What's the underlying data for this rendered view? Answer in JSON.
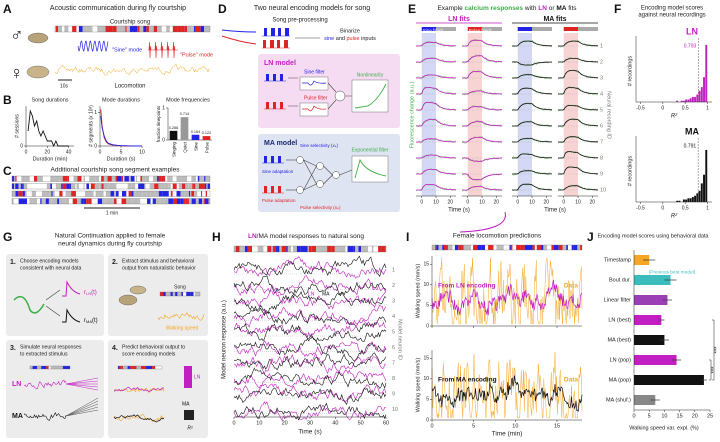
{
  "a": {
    "letter": "A",
    "title": "Acoustic communication during fly courtship",
    "male": "♂",
    "female": "♀",
    "song_label": "Courtship song",
    "sine_mode": "\"Sine\" mode",
    "pulse_mode": "\"Pulse\" mode",
    "scale": "10s",
    "locomotion": "Locomotion"
  },
  "b": {
    "letter": "B",
    "song_durations": {
      "type": "line",
      "title": "Song durations",
      "xlabel": "Duration (min)",
      "ylabel": "# sessions",
      "xlim": [
        0,
        45
      ],
      "xticks": [
        0,
        20,
        40
      ],
      "ylim": [
        0,
        8
      ],
      "yticks": [
        0
      ],
      "color": "#111111",
      "x": [
        2,
        4,
        6,
        8,
        10,
        12,
        14,
        16,
        18,
        20,
        22,
        24,
        26,
        28,
        30,
        35,
        40
      ],
      "values": [
        3,
        7,
        6,
        4,
        5,
        3,
        2,
        3,
        2,
        1,
        1,
        1,
        0,
        1,
        0,
        0,
        0
      ]
    },
    "mode_durations": {
      "type": "line",
      "title": "Mode durations",
      "xlabel": "Duration (s)",
      "ylabel": "# segments (x 10³)",
      "xlim": [
        0,
        10
      ],
      "xticks": [
        0,
        5,
        10
      ],
      "ylim": [
        0,
        1.2
      ],
      "yticks": [
        0,
        1
      ],
      "x": [
        0.2,
        0.5,
        1,
        1.5,
        2,
        3,
        4,
        5,
        6,
        8,
        10
      ],
      "series": [
        {
          "color": "#e02424",
          "values": [
            1.1,
            0.6,
            0.25,
            0.12,
            0.06,
            0.03,
            0.02,
            0.01,
            0,
            0,
            0
          ]
        },
        {
          "color": "#2323e6",
          "values": [
            0.9,
            0.55,
            0.3,
            0.15,
            0.08,
            0.04,
            0.02,
            0.01,
            0.01,
            0,
            0
          ]
        }
      ]
    },
    "mode_frequencies": {
      "type": "bar",
      "title": "Mode frequencies",
      "ylabel": "fraction timepoints",
      "ylim": [
        0,
        1
      ],
      "yticks": [
        0,
        1
      ],
      "categories": [
        "Singing",
        "Quiet",
        "Sine",
        "Pulse"
      ],
      "values": [
        0.286,
        0.714,
        0.164,
        0.122
      ],
      "colors": [
        "#111111",
        "#999999",
        "#2323e6",
        "#e02424"
      ]
    }
  },
  "c": {
    "letter": "C",
    "title": "Additional courtship song segment examples",
    "scale": "1 min"
  },
  "d": {
    "letter": "D",
    "title": "Two neural encoding models for song",
    "preprocessing": "Song pre-processing",
    "binarize": "Binarize",
    "binarize_parts": [
      "sine",
      " and ",
      "pulse",
      " inputs"
    ],
    "ln_model": "LN model",
    "sine_filter": "Sine filter",
    "pulse_filter": "Pulse filter",
    "nonlinearity": "Nonlinearity",
    "ma_model": "MA model",
    "sine_selectivity": "Sine selectivity (xₛ)",
    "sine_adaptation": "Sine adaptation",
    "pulse_adaptation": "Pulse adaptation",
    "pulse_selectivity": "Pulse selectivity (xₚ)",
    "exponential_filter": "Exponential filter"
  },
  "e": {
    "letter": "E",
    "title_parts": [
      "Example ",
      "calcium responses",
      " with ",
      "LN",
      " or ",
      "MA",
      " fits"
    ],
    "ln_fits": "LN fits",
    "ma_fits": "MA fits",
    "sine_block": "Sine block",
    "pulse_block": "Pulse block",
    "ylabel": "Fluorescence change (a.u.)",
    "y2label": "Neural recording ID",
    "xlabel": "Time (s)",
    "xlim": [
      -4,
      24
    ],
    "xticks": [
      0,
      10,
      20
    ],
    "ids": [
      1,
      2,
      3,
      4,
      5,
      6,
      7,
      8,
      9,
      10
    ]
  },
  "f": {
    "letter": "F",
    "title_lines": [
      "Encoding model scores",
      "against neural recordings"
    ],
    "charts": [
      {
        "type": "histogram",
        "label": "LN",
        "color": "#c21fc2",
        "mean": 0.793,
        "xlabel": "R²",
        "ylabel": "# recordings",
        "xlim": [
          -0.6,
          1.1
        ],
        "xticks": [
          -0.5,
          0,
          0.5,
          1
        ],
        "ylim": [
          0,
          50
        ],
        "bins": [
          0.3,
          0.35,
          0.4,
          0.45,
          0.5,
          0.55,
          0.6,
          0.65,
          0.7,
          0.75,
          0.8,
          0.85,
          0.9,
          0.95,
          1.0
        ],
        "counts": [
          1,
          0,
          1,
          1,
          2,
          2,
          3,
          4,
          4,
          6,
          9,
          12,
          20,
          46
        ]
      },
      {
        "type": "histogram",
        "label": "MA",
        "color": "#111111",
        "mean": 0.791,
        "xlabel": "R²",
        "ylabel": "# recordings",
        "xlim": [
          -0.6,
          1.1
        ],
        "xticks": [
          -0.5,
          0,
          0.5,
          1
        ],
        "ylim": [
          0,
          50
        ],
        "bins": [
          0.3,
          0.35,
          0.4,
          0.45,
          0.5,
          0.55,
          0.6,
          0.65,
          0.7,
          0.75,
          0.8,
          0.85,
          0.9,
          0.95,
          1.0
        ],
        "counts": [
          1,
          1,
          0,
          2,
          2,
          3,
          3,
          4,
          5,
          7,
          9,
          15,
          22,
          42
        ]
      }
    ]
  },
  "g": {
    "letter": "G",
    "title_lines": [
      "Natural Continuation applied to female",
      "neural dynamics during fly courtship"
    ],
    "steps": [
      {
        "num": "1.",
        "lines": [
          "Choose encoding models",
          "consistent with neural data"
        ]
      },
      {
        "num": "2.",
        "lines": [
          "Extract stimulus and behavioral",
          "output from naturalistic behavior"
        ]
      },
      {
        "num": "3.",
        "lines": [
          "Simulate neural responses",
          "to extracted stimulus"
        ]
      },
      {
        "num": "4.",
        "lines": [
          "Predict behavioral output to",
          "score encoding models"
        ]
      }
    ],
    "r_ln": {
      "base": "r",
      "sub": "LN",
      "tail": "(t)"
    },
    "r_ma": {
      "base": "r",
      "sub": "MA",
      "tail": "(t)"
    },
    "song": "Song",
    "walking_speed": "Walking speed",
    "ln": "LN",
    "ma": "MA",
    "r2": "R²"
  },
  "h": {
    "letter": "H",
    "title_parts": [
      "LN",
      "/MA model responses to natural song"
    ],
    "ylabel": "Model neuron response (a.u.)",
    "y2label": "Model neuron ID",
    "xlabel": "Time (s)",
    "xlim": [
      0,
      60
    ],
    "xticks": [
      0,
      10,
      20,
      30,
      40,
      50,
      60
    ],
    "ids": [
      1,
      2,
      3,
      4,
      5,
      6,
      7,
      8,
      9,
      10
    ],
    "legend": [
      "LN",
      "MA"
    ]
  },
  "i": {
    "letter": "I",
    "title": "Female locomotion predictions",
    "xlabel": "Time (min)",
    "xlim": [
      0,
      18
    ],
    "xticks": [
      0,
      5,
      10,
      15
    ],
    "ylim": [
      0,
      17
    ],
    "yticks": [
      0,
      5,
      10,
      15
    ],
    "panels": [
      {
        "label": "From LN encoding",
        "data_label": "Data",
        "ylabel": "Walking speed (mm/s)",
        "color": "#c21fc2"
      },
      {
        "label": "From MA encoding",
        "data_label": "Data",
        "ylabel": "Walking speed (mm/s)",
        "color": "#111111"
      }
    ]
  },
  "j": {
    "letter": "J",
    "title": "Encoding model scores using behavioral data",
    "xlabel": "Walking speed var. expl. (%)",
    "note": "(Previous best model)",
    "chart": {
      "type": "hbar",
      "categories": [
        "Timestamp",
        "Bout dur.",
        "Linear filter",
        "LN (best)",
        "MA (best)",
        "LN (pop)",
        "MA (pop)",
        "MA (shuf.)"
      ],
      "values": [
        5,
        12,
        11,
        9,
        10,
        14,
        23,
        7
      ],
      "errors": [
        2,
        2,
        1.5,
        1,
        1.5,
        1.5,
        1,
        1.5
      ],
      "colors": [
        "#f5a623",
        "#3bbdbd",
        "#9b3fb5",
        "#c21fc2",
        "#111111",
        "#c21fc2",
        "#111111",
        "#888888"
      ],
      "xlim": [
        0,
        25
      ],
      "xticks": [
        0,
        5,
        10,
        15,
        20,
        25
      ]
    },
    "sig": [
      "***",
      "***"
    ]
  }
}
